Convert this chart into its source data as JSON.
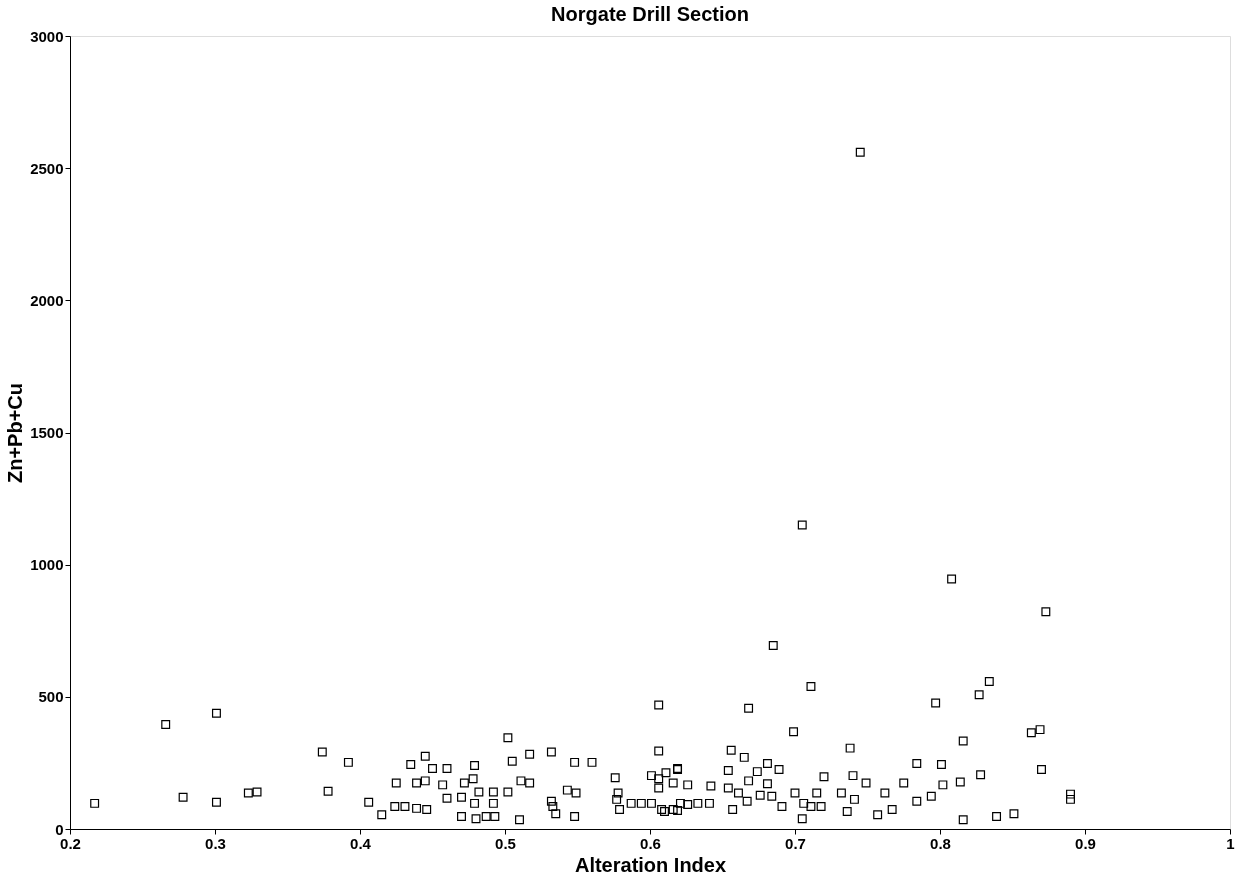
{
  "chart_data": {
    "type": "scatter",
    "title": "Norgate Drill Section",
    "xlabel": "Alteration Index",
    "ylabel": "Zn+Pb+Cu",
    "xlim": [
      0.2,
      1
    ],
    "xticks": [
      0.2,
      0.3,
      0.4,
      0.5,
      0.6,
      0.7,
      0.8,
      0.9,
      1
    ],
    "ylim": [
      0,
      3000
    ],
    "yticks": [
      0,
      500,
      1000,
      1500,
      2000,
      2500,
      3000
    ],
    "grid": false,
    "marker": "square",
    "series": [
      {
        "color": "#000000",
        "x": [
          0.217,
          0.266,
          0.301,
          0.278,
          0.301,
          0.323,
          0.329,
          0.374,
          0.378,
          0.392,
          0.406,
          0.415,
          0.425,
          0.435,
          0.445,
          0.45,
          0.46,
          0.439,
          0.445,
          0.457,
          0.424,
          0.431,
          0.439,
          0.446,
          0.46,
          0.47,
          0.472,
          0.479,
          0.478,
          0.482,
          0.479,
          0.47,
          0.48,
          0.487,
          0.493,
          0.492,
          0.502,
          0.492,
          0.502,
          0.505,
          0.517,
          0.511,
          0.517,
          0.51,
          0.532,
          0.532,
          0.533,
          0.535,
          0.543,
          0.549,
          0.548,
          0.548,
          0.56,
          0.576,
          0.578,
          0.577,
          0.579,
          0.587,
          0.594,
          0.601,
          0.608,
          0.616,
          0.621,
          0.606,
          0.606,
          0.601,
          0.606,
          0.611,
          0.619,
          0.616,
          0.606,
          0.668,
          0.711,
          0.699,
          0.656,
          0.665,
          0.681,
          0.689,
          0.674,
          0.654,
          0.626,
          0.619,
          0.642,
          0.654,
          0.668,
          0.681,
          0.661,
          0.676,
          0.684,
          0.667,
          0.641,
          0.633,
          0.626,
          0.619,
          0.61,
          0.657,
          0.691,
          0.7,
          0.706,
          0.715,
          0.711,
          0.718,
          0.705,
          0.72,
          0.732,
          0.738,
          0.74,
          0.749,
          0.741,
          0.736,
          0.757,
          0.767,
          0.762,
          0.775,
          0.784,
          0.784,
          0.794,
          0.797,
          0.801,
          0.802,
          0.816,
          0.814,
          0.816,
          0.808,
          0.873,
          0.834,
          0.827,
          0.863,
          0.869,
          0.87,
          0.828,
          0.89,
          0.89,
          0.839,
          0.851,
          0.705,
          0.685,
          0.745
        ],
        "values": [
          97,
          395,
          438,
          120,
          101,
          136,
          140,
          291,
          143,
          252,
          101,
          54,
          174,
          244,
          275,
          229,
          229,
          174,
          182,
          167,
          85,
          85,
          78,
          74,
          116,
          120,
          174,
          240,
          190,
          140,
          97,
          47,
          39,
          47,
          47,
          140,
          140,
          97,
          345,
          256,
          283,
          182,
          174,
          35,
          291,
          105,
          85,
          58,
          147,
          136,
          47,
          252,
          252,
          194,
          136,
          112,
          74,
          97,
          97,
          97,
          74,
          74,
          97,
          469,
          295,
          202,
          190,
          213,
          229,
          174,
          155,
          457,
          539,
          368,
          298,
          271,
          248,
          225,
          217,
          221,
          167,
          225,
          163,
          155,
          182,
          171,
          136,
          128,
          124,
          105,
          97,
          97,
          93,
          70,
          66,
          74,
          85,
          136,
          97,
          136,
          85,
          85,
          39,
          198,
          136,
          306,
          202,
          174,
          112,
          66,
          54,
          74,
          136,
          174,
          248,
          105,
          124,
          477,
          244,
          167,
          333,
          178,
          35,
          946,
          822,
          558,
          508,
          364,
          376,
          225,
          205,
          132,
          112,
          47,
          58,
          1150,
          694,
          2560
        ]
      }
    ]
  }
}
